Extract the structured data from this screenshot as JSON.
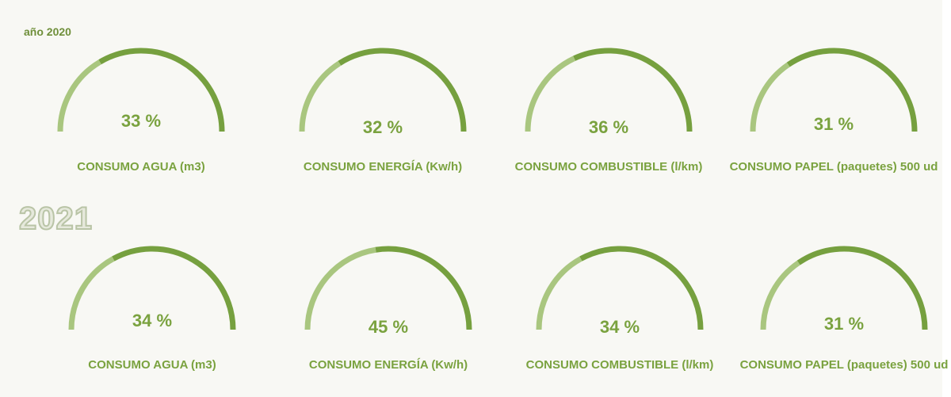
{
  "chart_data": [
    {
      "type": "gauge",
      "title": "año 2020",
      "categories": [
        "CONSUMO AGUA (m3)",
        "CONSUMO ENERGÍA (Kw/h)",
        "CONSUMO COMBUSTIBLE (l/km)",
        "CONSUMO PAPEL (paquetes) 500 ud"
      ],
      "values": [
        33,
        32,
        36,
        31
      ],
      "value_labels": [
        "33 %",
        "32 %",
        "36 %",
        "31 %"
      ],
      "color": "#76a03f",
      "track_color": "#a9c67f"
    },
    {
      "type": "gauge",
      "title": "2021",
      "categories": [
        "CONSUMO AGUA (m3)",
        "CONSUMO ENERGÍA (Kw/h)",
        "CONSUMO COMBUSTIBLE (l/km)",
        "CONSUMO PAPEL (paquetes) 500 ud"
      ],
      "values": [
        34,
        45,
        34,
        31
      ],
      "value_labels": [
        "34 %",
        "45 %",
        "34 %",
        "31 %"
      ],
      "color": "#76a03f",
      "track_color": "#a9c67f"
    }
  ]
}
